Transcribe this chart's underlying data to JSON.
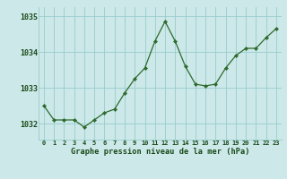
{
  "x": [
    0,
    1,
    2,
    3,
    4,
    5,
    6,
    7,
    8,
    9,
    10,
    11,
    12,
    13,
    14,
    15,
    16,
    17,
    18,
    19,
    20,
    21,
    22,
    23
  ],
  "y": [
    1032.5,
    1032.1,
    1032.1,
    1032.1,
    1031.9,
    1032.1,
    1032.3,
    1032.4,
    1032.85,
    1033.25,
    1033.55,
    1034.3,
    1034.85,
    1034.3,
    1033.6,
    1033.1,
    1033.05,
    1033.1,
    1033.55,
    1033.9,
    1034.1,
    1034.1,
    1034.4,
    1034.65
  ],
  "line_color": "#2d6a2d",
  "marker_color": "#2d6a2d",
  "bg_color": "#cce8e8",
  "grid_color": "#99cccc",
  "title": "Graphe pression niveau de la mer (hPa)",
  "title_color": "#1a4a1a",
  "xlabel_ticks": [
    "0",
    "1",
    "2",
    "3",
    "4",
    "5",
    "6",
    "7",
    "8",
    "9",
    "10",
    "11",
    "12",
    "13",
    "14",
    "15",
    "16",
    "17",
    "18",
    "19",
    "20",
    "21",
    "22",
    "23"
  ],
  "yticks": [
    1032,
    1033,
    1034,
    1035
  ],
  "ylim": [
    1031.55,
    1035.25
  ],
  "xlim": [
    -0.5,
    23.5
  ]
}
